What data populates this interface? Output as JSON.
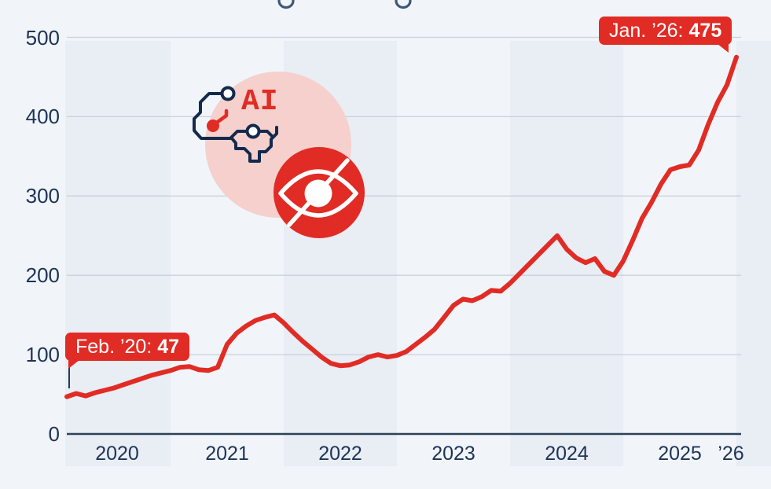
{
  "illustration": {
    "ai_text": "AI",
    "icons": [
      "ai-brain-circuit-icon",
      "hidden-eye-icon"
    ]
  },
  "chart_data": {
    "type": "line",
    "x": [
      "2020-02",
      "2020-03",
      "2020-04",
      "2020-05",
      "2020-06",
      "2020-07",
      "2020-08",
      "2020-09",
      "2020-10",
      "2020-11",
      "2020-12",
      "2021-01",
      "2021-02",
      "2021-03",
      "2021-04",
      "2021-05",
      "2021-06",
      "2021-07",
      "2021-08",
      "2021-09",
      "2021-10",
      "2021-11",
      "2021-12",
      "2022-01",
      "2022-02",
      "2022-03",
      "2022-04",
      "2022-05",
      "2022-06",
      "2022-07",
      "2022-08",
      "2022-09",
      "2022-10",
      "2022-11",
      "2022-12",
      "2023-01",
      "2023-02",
      "2023-03",
      "2023-04",
      "2023-05",
      "2023-06",
      "2023-07",
      "2023-08",
      "2023-09",
      "2023-10",
      "2023-11",
      "2023-12",
      "2024-01",
      "2024-02",
      "2024-03",
      "2024-04",
      "2024-05",
      "2024-06",
      "2024-07",
      "2024-08",
      "2024-09",
      "2024-10",
      "2024-11",
      "2024-12",
      "2025-01",
      "2025-02",
      "2025-03",
      "2025-04",
      "2025-05",
      "2025-06",
      "2025-07",
      "2025-08",
      "2025-09",
      "2025-10",
      "2025-11",
      "2025-12",
      "2026-01"
    ],
    "values": [
      47,
      51,
      48,
      52,
      55,
      58,
      62,
      66,
      70,
      74,
      77,
      80,
      84,
      85,
      81,
      80,
      84,
      113,
      127,
      136,
      143,
      147,
      150,
      140,
      128,
      117,
      107,
      97,
      89,
      86,
      87,
      91,
      97,
      100,
      97,
      99,
      104,
      113,
      122,
      132,
      147,
      162,
      170,
      168,
      173,
      181,
      180,
      190,
      202,
      214,
      226,
      238,
      250,
      233,
      222,
      216,
      221,
      205,
      200,
      218,
      244,
      272,
      292,
      315,
      333,
      337,
      339,
      358,
      390,
      418,
      440,
      475
    ],
    "x_tick_labels": [
      "2020",
      "2021",
      "2022",
      "2023",
      "2024",
      "2025",
      "’26"
    ],
    "y_ticks": [
      0,
      100,
      200,
      300,
      400,
      500
    ],
    "ylim": [
      0,
      500
    ],
    "grid": true,
    "legend": "none",
    "annotations": [
      {
        "x": "2020-02",
        "label": "Feb. ’20:",
        "value": "47"
      },
      {
        "x": "2026-01",
        "label": "Jan. ’26:",
        "value": "475"
      }
    ],
    "colors": {
      "line": "#e02c25",
      "badge": "#e02c25",
      "stripe": "#e9edf4",
      "background": "#f1f5f9",
      "grid": "#c9d1db",
      "axis": "#2c4258",
      "tick_text": "#1d3356",
      "pink_circle": "#f5d0cc",
      "icon_red": "#e02c25",
      "circuit_navy": "#142a4d"
    }
  }
}
